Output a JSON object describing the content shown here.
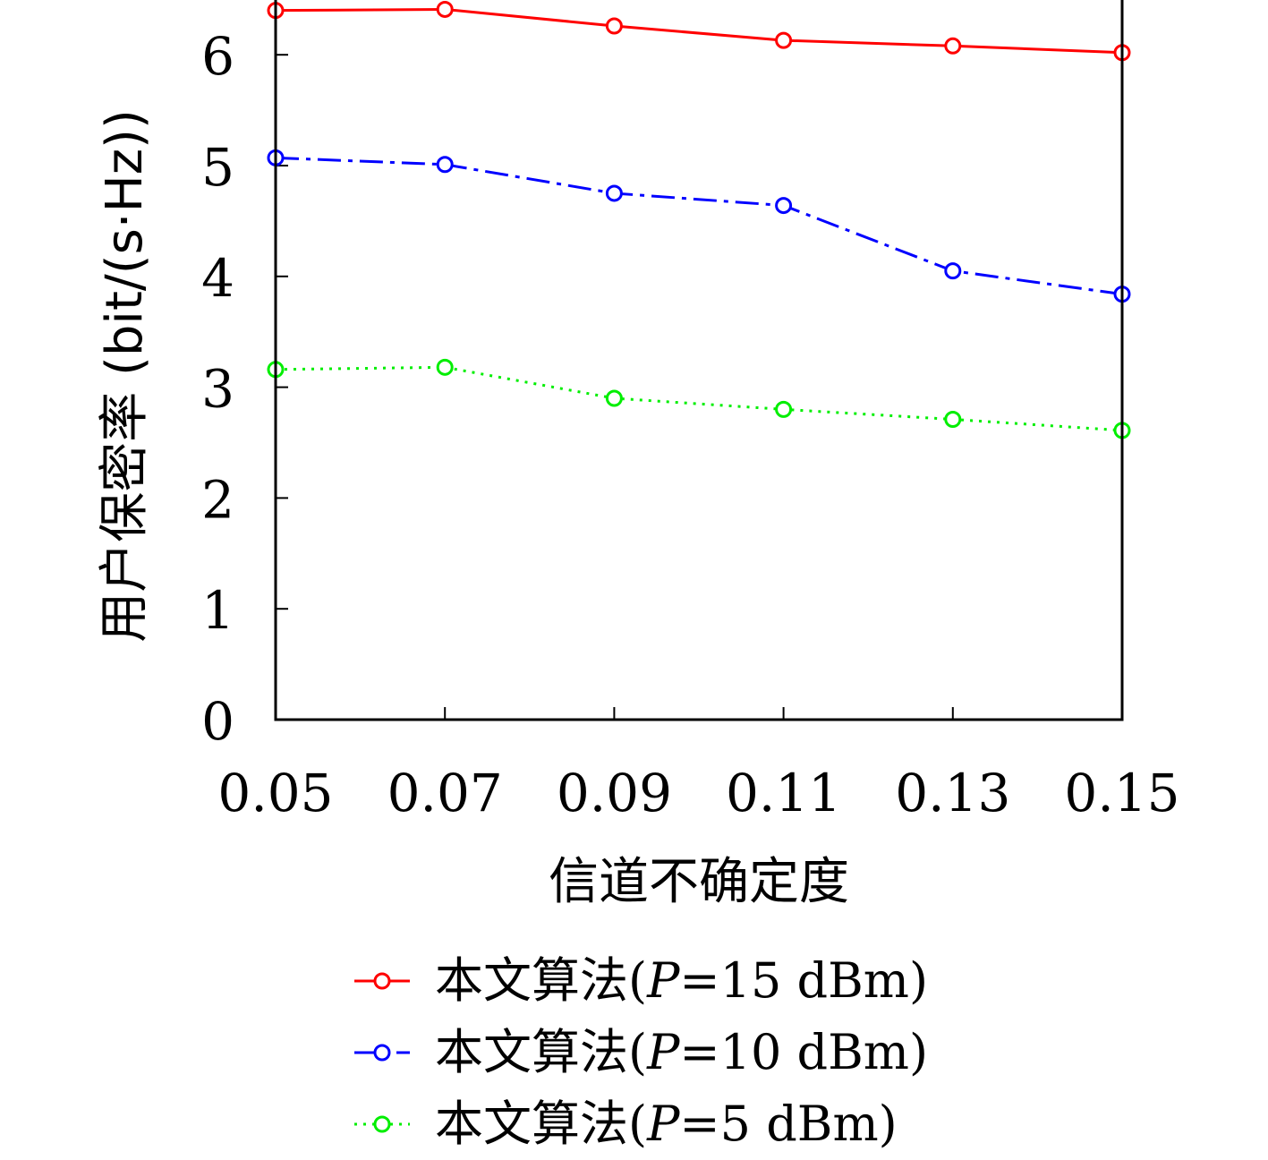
{
  "chart_data": {
    "type": "line",
    "title": "",
    "xlabel": "信道不确定度",
    "ylabel": "用户保密率 (bit/(s·Hz))",
    "x": [
      0.05,
      0.07,
      0.09,
      0.11,
      0.13,
      0.15
    ],
    "x_tick_labels": [
      "0.05",
      "0.07",
      "0.09",
      "0.11",
      "0.13",
      "0.15"
    ],
    "y_ticks": [
      0,
      1,
      2,
      3,
      4,
      5,
      6
    ],
    "xlim": [
      0.05,
      0.15
    ],
    "ylim": [
      0,
      6.5
    ],
    "grid": false,
    "legend_position": "bottom",
    "series": [
      {
        "name": "本文算法(P=15 dBm)",
        "legend_prefix": "本文算法(",
        "legend_var": "P",
        "legend_suffix": "=15 dBm)",
        "values": [
          6.4,
          6.41,
          6.26,
          6.13,
          6.08,
          6.02
        ],
        "color": "#ff0000",
        "dash": "none"
      },
      {
        "name": "本文算法(P=10 dBm)",
        "legend_prefix": "本文算法(",
        "legend_var": "P",
        "legend_suffix": "=10 dBm)",
        "values": [
          5.07,
          5.01,
          4.75,
          4.64,
          4.05,
          3.84
        ],
        "color": "#0000ff",
        "dash": "dashdot"
      },
      {
        "name": "本文算法(P=5 dBm)",
        "legend_prefix": "本文算法(",
        "legend_var": "P",
        "legend_suffix": "=5 dBm)",
        "values": [
          3.16,
          3.18,
          2.9,
          2.8,
          2.71,
          2.61
        ],
        "color": "#00ee00",
        "dash": "dotted"
      }
    ]
  }
}
